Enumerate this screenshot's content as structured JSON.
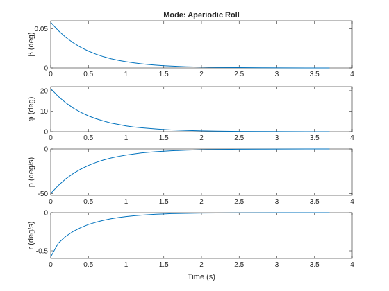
{
  "chart_data": {
    "type": "line",
    "title": "Mode: Aperiodic Roll",
    "xlabel": "Time (s)",
    "xlim": [
      0,
      4
    ],
    "xticks": [
      "0",
      "0.5",
      "1",
      "1.5",
      "2",
      "2.5",
      "3",
      "3.5",
      "4"
    ],
    "grid": false,
    "line_color": "#0072BD",
    "subplots": [
      {
        "ylabel": "β (deg)",
        "ylim": [
          0,
          0.06
        ],
        "yticks": [
          {
            "value": 0,
            "label": "0"
          },
          {
            "value": 0.05,
            "label": "0.05"
          }
        ],
        "x": [
          0,
          0.1,
          0.2,
          0.3,
          0.4,
          0.5,
          0.6,
          0.7,
          0.8,
          0.9,
          1.0,
          1.1,
          1.2,
          1.3,
          1.4,
          1.5,
          1.6,
          1.8,
          2.0,
          2.2,
          2.5,
          2.8,
          3.1,
          3.4,
          3.7
        ],
        "y": [
          0.058,
          0.0475,
          0.0389,
          0.0319,
          0.0261,
          0.0214,
          0.0175,
          0.0143,
          0.0117,
          0.0096,
          0.0079,
          0.0065,
          0.0053,
          0.0043,
          0.0035,
          0.0029,
          0.0024,
          0.0016,
          0.0011,
          0.0007,
          0.0004,
          0.0002,
          0.0001,
          5e-05,
          3e-05
        ]
      },
      {
        "ylabel": "φ (deg)",
        "ylim": [
          0,
          22
        ],
        "yticks": [
          {
            "value": 0,
            "label": "0"
          },
          {
            "value": 10,
            "label": "10"
          },
          {
            "value": 20,
            "label": "20"
          }
        ],
        "x": [
          0,
          0.1,
          0.2,
          0.3,
          0.4,
          0.5,
          0.6,
          0.7,
          0.8,
          0.9,
          1.0,
          1.1,
          1.2,
          1.3,
          1.4,
          1.5,
          1.6,
          1.8,
          2.0,
          2.2,
          2.5,
          2.8,
          3.1,
          3.4,
          3.7
        ],
        "y": [
          21.0,
          17.2,
          14.1,
          11.5,
          9.4,
          7.7,
          6.3,
          5.2,
          4.2,
          3.5,
          2.8,
          2.3,
          1.9,
          1.6,
          1.3,
          1.05,
          0.86,
          0.58,
          0.39,
          0.26,
          0.14,
          0.08,
          0.04,
          0.02,
          0.01
        ]
      },
      {
        "ylabel": "p (deg/s)",
        "ylim": [
          -52,
          0
        ],
        "yticks": [
          {
            "value": -50,
            "label": "-50"
          },
          {
            "value": 0,
            "label": "0"
          }
        ],
        "x": [
          0,
          0.1,
          0.2,
          0.3,
          0.4,
          0.5,
          0.6,
          0.7,
          0.8,
          0.9,
          1.0,
          1.1,
          1.2,
          1.3,
          1.4,
          1.5,
          1.6,
          1.8,
          2.0,
          2.2,
          2.5,
          2.8,
          3.1,
          3.4,
          3.7
        ],
        "y": [
          -50.0,
          -40.9,
          -33.5,
          -27.4,
          -22.5,
          -18.4,
          -15.1,
          -12.3,
          -10.1,
          -8.3,
          -6.8,
          -5.6,
          -4.5,
          -3.7,
          -3.0,
          -2.5,
          -2.0,
          -1.4,
          -0.9,
          -0.6,
          -0.3,
          -0.18,
          -0.09,
          -0.05,
          -0.03
        ]
      },
      {
        "ylabel": "r (deg/s)",
        "ylim": [
          -0.6,
          0
        ],
        "yticks": [
          {
            "value": -0.5,
            "label": "-0.5"
          },
          {
            "value": 0,
            "label": "0"
          }
        ],
        "x": [
          0,
          0.1,
          0.2,
          0.3,
          0.4,
          0.5,
          0.6,
          0.7,
          0.8,
          0.9,
          1.0,
          1.1,
          1.2,
          1.3,
          1.4,
          1.5,
          1.6,
          1.8,
          2.0,
          2.2,
          2.5,
          2.8,
          3.1,
          3.4,
          3.7
        ],
        "y": [
          -0.58,
          -0.4,
          -0.31,
          -0.245,
          -0.195,
          -0.155,
          -0.125,
          -0.1,
          -0.08,
          -0.064,
          -0.051,
          -0.041,
          -0.033,
          -0.026,
          -0.021,
          -0.017,
          -0.013,
          -0.009,
          -0.006,
          -0.004,
          -0.002,
          -0.001,
          -0.0005,
          -0.0002,
          -0.0001
        ]
      }
    ]
  }
}
